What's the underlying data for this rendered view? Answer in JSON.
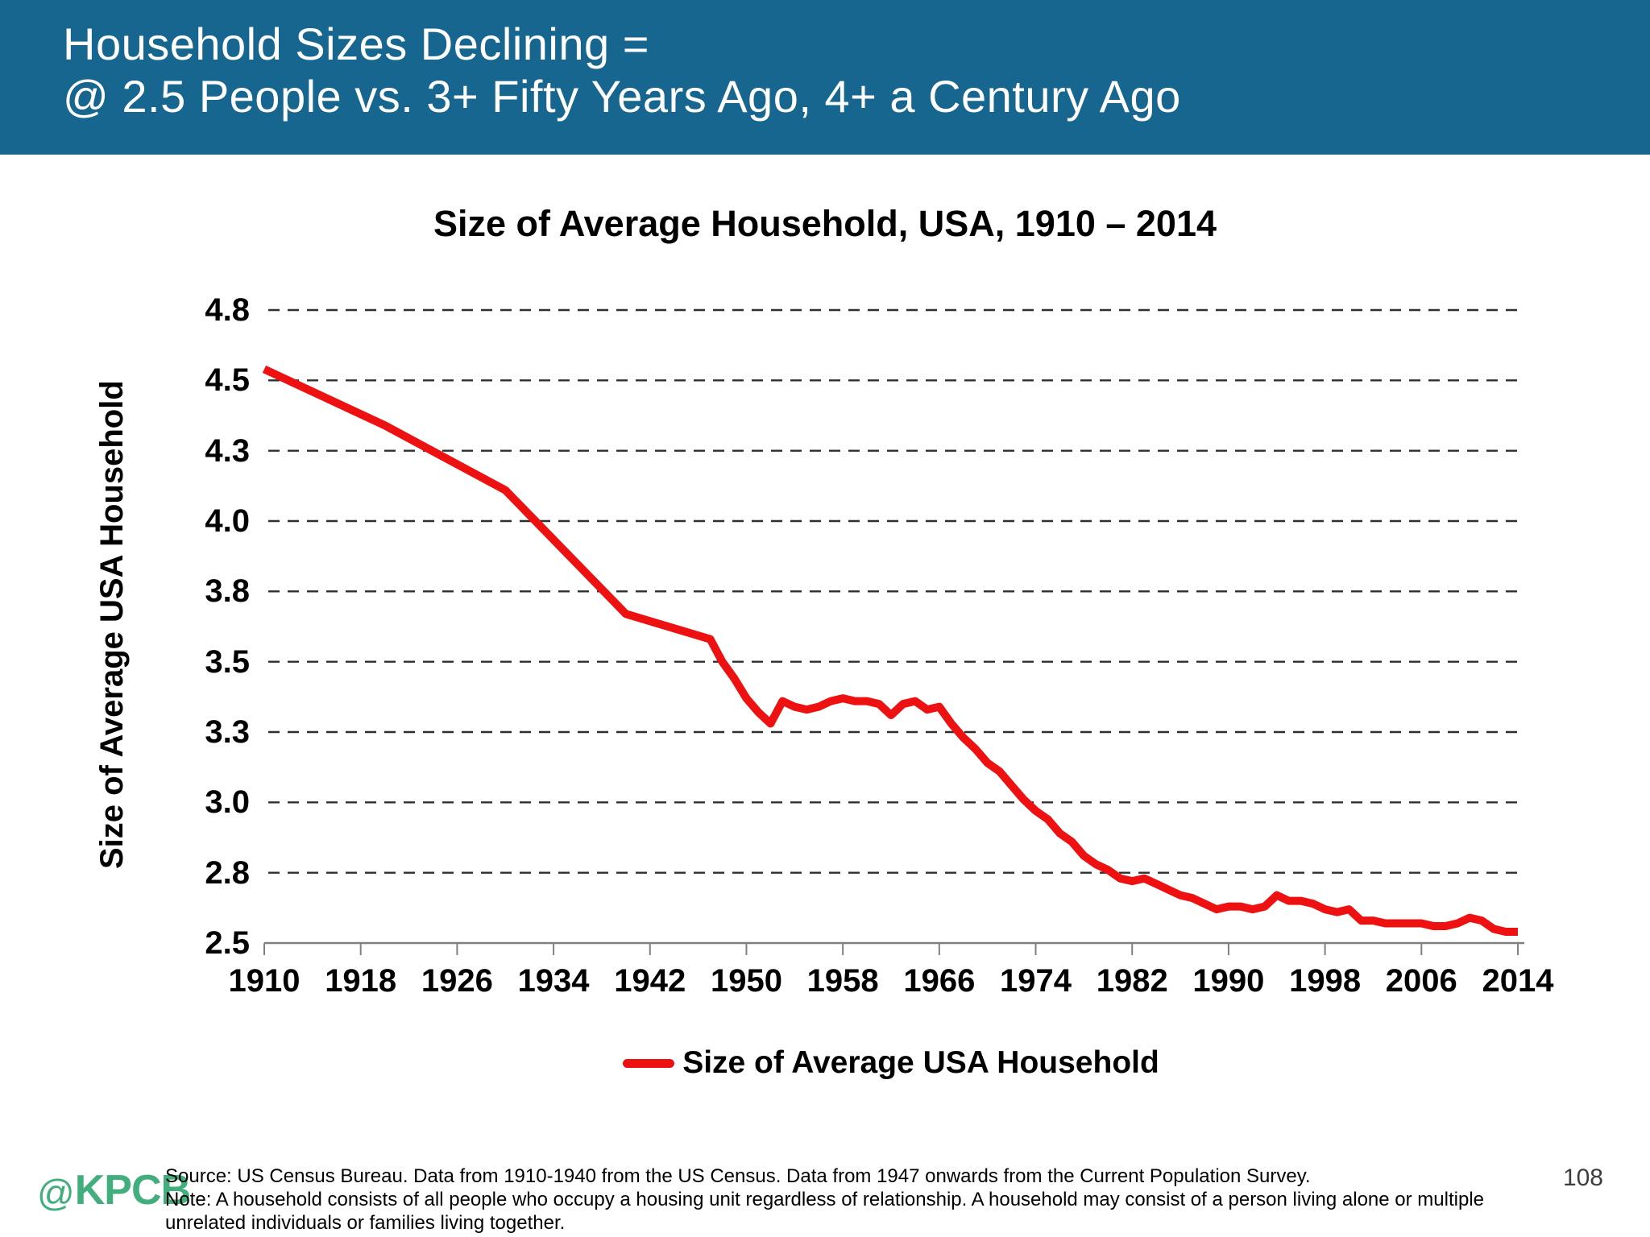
{
  "slide": {
    "header": {
      "title_line1": "Household Sizes Declining =",
      "title_line2": "@ 2.5 People vs. 3+ Fifty Years Ago, 4+ a Century Ago",
      "bg_color": "#17668F",
      "text_color": "#FFFFFF"
    },
    "footer": {
      "logo_at": "@",
      "logo_text": "KPCB",
      "logo_color": "#42AE7D",
      "source_line": "Source: US Census Bureau. Data from 1910-1940 from the US Census. Data from 1947 onwards from the Current Population Survey.",
      "note_line": "Note: A household consists of all people who occupy a housing unit regardless of relationship. A household may consist of a person living alone or multiple unrelated individuals or families living together.",
      "page_number": "108"
    }
  },
  "chart_data": {
    "type": "line",
    "title": "Size of Average Household, USA, 1910 – 2014",
    "ylabel": "Size of Average USA Household",
    "xlabel": "",
    "xlim": [
      1910,
      2014
    ],
    "ylim": [
      2.5,
      4.75
    ],
    "grid": {
      "horizontal": true,
      "style": "dashed"
    },
    "line_color": "#EE1111",
    "grid_color": "#2E2E2E",
    "axis_color": "#808080",
    "yticks": [
      {
        "value": 2.5,
        "label": "2.5"
      },
      {
        "value": 2.75,
        "label": "2.8"
      },
      {
        "value": 3.0,
        "label": "3.0"
      },
      {
        "value": 3.25,
        "label": "3.3"
      },
      {
        "value": 3.5,
        "label": "3.5"
      },
      {
        "value": 3.75,
        "label": "3.8"
      },
      {
        "value": 4.0,
        "label": "4.0"
      },
      {
        "value": 4.25,
        "label": "4.3"
      },
      {
        "value": 4.5,
        "label": "4.5"
      },
      {
        "value": 4.75,
        "label": "4.8"
      }
    ],
    "xticks": [
      1910,
      1918,
      1926,
      1934,
      1942,
      1950,
      1958,
      1966,
      1974,
      1982,
      1990,
      1998,
      2006,
      2014
    ],
    "legend": {
      "position": "bottom",
      "label": "Size of Average USA Household"
    },
    "series": [
      {
        "name": "Size of Average USA Household",
        "color": "#EE1111",
        "points": [
          [
            1910,
            4.54
          ],
          [
            1920,
            4.34
          ],
          [
            1930,
            4.11
          ],
          [
            1940,
            3.67
          ],
          [
            1947,
            3.58
          ],
          [
            1948,
            3.5
          ],
          [
            1949,
            3.44
          ],
          [
            1950,
            3.37
          ],
          [
            1951,
            3.32
          ],
          [
            1952,
            3.28
          ],
          [
            1953,
            3.36
          ],
          [
            1954,
            3.34
          ],
          [
            1955,
            3.33
          ],
          [
            1956,
            3.34
          ],
          [
            1957,
            3.36
          ],
          [
            1958,
            3.37
          ],
          [
            1959,
            3.36
          ],
          [
            1960,
            3.36
          ],
          [
            1961,
            3.35
          ],
          [
            1962,
            3.31
          ],
          [
            1963,
            3.35
          ],
          [
            1964,
            3.36
          ],
          [
            1965,
            3.33
          ],
          [
            1966,
            3.34
          ],
          [
            1967,
            3.28
          ],
          [
            1968,
            3.23
          ],
          [
            1969,
            3.19
          ],
          [
            1970,
            3.14
          ],
          [
            1971,
            3.11
          ],
          [
            1972,
            3.06
          ],
          [
            1973,
            3.01
          ],
          [
            1974,
            2.97
          ],
          [
            1975,
            2.94
          ],
          [
            1976,
            2.89
          ],
          [
            1977,
            2.86
          ],
          [
            1978,
            2.81
          ],
          [
            1979,
            2.78
          ],
          [
            1980,
            2.76
          ],
          [
            1981,
            2.73
          ],
          [
            1982,
            2.72
          ],
          [
            1983,
            2.73
          ],
          [
            1984,
            2.71
          ],
          [
            1985,
            2.69
          ],
          [
            1986,
            2.67
          ],
          [
            1987,
            2.66
          ],
          [
            1988,
            2.64
          ],
          [
            1989,
            2.62
          ],
          [
            1990,
            2.63
          ],
          [
            1991,
            2.63
          ],
          [
            1992,
            2.62
          ],
          [
            1993,
            2.63
          ],
          [
            1994,
            2.67
          ],
          [
            1995,
            2.65
          ],
          [
            1996,
            2.65
          ],
          [
            1997,
            2.64
          ],
          [
            1998,
            2.62
          ],
          [
            1999,
            2.61
          ],
          [
            2000,
            2.62
          ],
          [
            2001,
            2.58
          ],
          [
            2002,
            2.58
          ],
          [
            2003,
            2.57
          ],
          [
            2004,
            2.57
          ],
          [
            2005,
            2.57
          ],
          [
            2006,
            2.57
          ],
          [
            2007,
            2.56
          ],
          [
            2008,
            2.56
          ],
          [
            2009,
            2.57
          ],
          [
            2010,
            2.59
          ],
          [
            2011,
            2.58
          ],
          [
            2012,
            2.55
          ],
          [
            2013,
            2.54
          ],
          [
            2014,
            2.54
          ]
        ]
      }
    ]
  }
}
